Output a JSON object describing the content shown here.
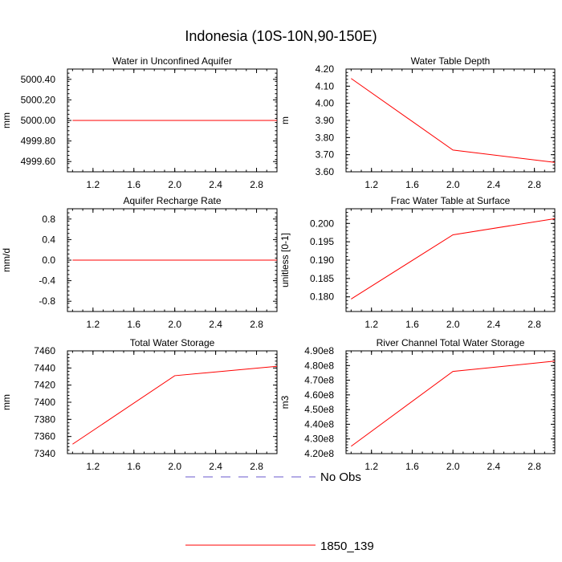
{
  "figure_title": "Indonesia (10S-10N,90-150E)",
  "legend": [
    {
      "label": "No Obs",
      "color": "#6a5acd",
      "dash": true
    },
    {
      "label": "1850_139",
      "color": "#ff0000",
      "dash": false
    }
  ],
  "chart_data": [
    {
      "type": "line",
      "title": "Water in Unconfined Aquifer",
      "ylabel": "mm",
      "xlim": [
        0.95,
        3.0
      ],
      "ylim": [
        4999.5,
        5000.5
      ],
      "xticks": [
        1.2,
        1.6,
        2.0,
        2.4,
        2.8
      ],
      "xtick_labels": [
        "1.2",
        "1.6",
        "2.0",
        "2.4",
        "2.8"
      ],
      "yticks": [
        4999.6,
        4999.8,
        5000.0,
        5000.2,
        5000.4
      ],
      "ytick_labels": [
        "4999.60",
        "4999.80",
        "5000.00",
        "5000.20",
        "5000.40"
      ],
      "series": [
        {
          "name": "1850_139",
          "x": [
            1,
            2,
            3
          ],
          "y": [
            5000.0,
            5000.0,
            5000.0
          ],
          "color": "#ff0000"
        }
      ]
    },
    {
      "type": "line",
      "title": "Water Table Depth",
      "ylabel": "m",
      "xlim": [
        0.95,
        3.0
      ],
      "ylim": [
        3.6,
        4.2
      ],
      "xticks": [
        1.2,
        1.6,
        2.0,
        2.4,
        2.8
      ],
      "xtick_labels": [
        "1.2",
        "1.6",
        "2.0",
        "2.4",
        "2.8"
      ],
      "yticks": [
        3.6,
        3.7,
        3.8,
        3.9,
        4.0,
        4.1,
        4.2
      ],
      "ytick_labels": [
        "3.60",
        "3.70",
        "3.80",
        "3.90",
        "4.00",
        "4.10",
        "4.20"
      ],
      "series": [
        {
          "name": "1850_139",
          "x": [
            1,
            2,
            3
          ],
          "y": [
            4.145,
            3.727,
            3.655
          ],
          "color": "#ff0000"
        }
      ]
    },
    {
      "type": "line",
      "title": "Aquifer Recharge Rate",
      "ylabel": "mm/d",
      "xlim": [
        0.95,
        3.0
      ],
      "ylim": [
        -1.0,
        1.0
      ],
      "xticks": [
        1.2,
        1.6,
        2.0,
        2.4,
        2.8
      ],
      "xtick_labels": [
        "1.2",
        "1.6",
        "2.0",
        "2.4",
        "2.8"
      ],
      "yticks": [
        -0.8,
        -0.4,
        0.0,
        0.4,
        0.8
      ],
      "ytick_labels": [
        "-0.8",
        "-0.4",
        "0.0",
        "0.4",
        "0.8"
      ],
      "series": [
        {
          "name": "1850_139",
          "x": [
            1,
            2,
            3
          ],
          "y": [
            0.0,
            0.0,
            0.0
          ],
          "color": "#ff0000"
        }
      ]
    },
    {
      "type": "line",
      "title": "Frac Water Table at Surface",
      "ylabel": "unitless [0-1]",
      "xlim": [
        0.95,
        3.0
      ],
      "ylim": [
        0.176,
        0.204
      ],
      "xticks": [
        1.2,
        1.6,
        2.0,
        2.4,
        2.8
      ],
      "xtick_labels": [
        "1.2",
        "1.6",
        "2.0",
        "2.4",
        "2.8"
      ],
      "yticks": [
        0.18,
        0.185,
        0.19,
        0.195,
        0.2
      ],
      "ytick_labels": [
        "0.180",
        "0.185",
        "0.190",
        "0.195",
        "0.200"
      ],
      "series": [
        {
          "name": "1850_139",
          "x": [
            1,
            2,
            3
          ],
          "y": [
            0.1794,
            0.1969,
            0.2013
          ],
          "color": "#ff0000"
        }
      ]
    },
    {
      "type": "line",
      "title": "Total Water Storage",
      "ylabel": "mm",
      "xlim": [
        0.95,
        3.0
      ],
      "ylim": [
        7340,
        7460
      ],
      "xticks": [
        1.2,
        1.6,
        2.0,
        2.4,
        2.8
      ],
      "xtick_labels": [
        "1.2",
        "1.6",
        "2.0",
        "2.4",
        "2.8"
      ],
      "yticks": [
        7340,
        7360,
        7380,
        7400,
        7420,
        7440,
        7460
      ],
      "ytick_labels": [
        "7340",
        "7360",
        "7380",
        "7400",
        "7420",
        "7440",
        "7460"
      ],
      "series": [
        {
          "name": "1850_139",
          "x": [
            1,
            2,
            3
          ],
          "y": [
            7351,
            7431,
            7442
          ],
          "color": "#ff0000"
        }
      ]
    },
    {
      "type": "line",
      "title": "River Channel Total Water Storage",
      "ylabel": "m3",
      "xlim": [
        0.95,
        3.0
      ],
      "ylim": [
        420000000,
        490000000
      ],
      "xticks": [
        1.2,
        1.6,
        2.0,
        2.4,
        2.8
      ],
      "xtick_labels": [
        "1.2",
        "1.6",
        "2.0",
        "2.4",
        "2.8"
      ],
      "yticks": [
        420000000,
        430000000,
        440000000,
        450000000,
        460000000,
        470000000,
        480000000,
        490000000
      ],
      "ytick_labels": [
        "4.20e8",
        "4.30e8",
        "4.40e8",
        "4.50e8",
        "4.60e8",
        "4.70e8",
        "4.80e8",
        "4.90e8"
      ],
      "series": [
        {
          "name": "1850_139",
          "x": [
            1,
            2,
            3
          ],
          "y": [
            425000000,
            476000000,
            483000000
          ],
          "color": "#ff0000"
        }
      ]
    }
  ]
}
